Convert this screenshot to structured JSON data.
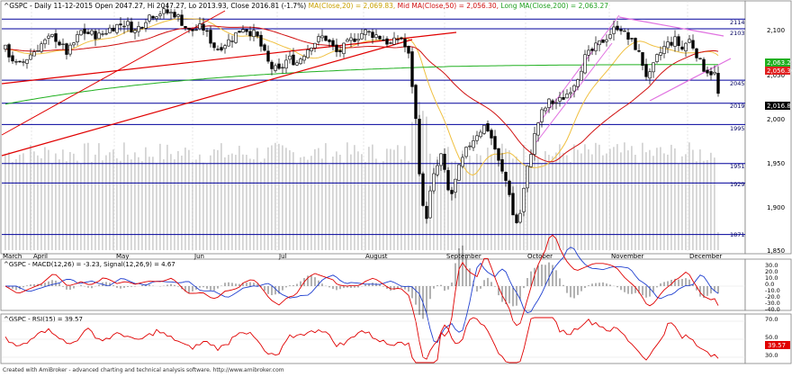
{
  "price_panel": {
    "symbol": "^GSPC",
    "period": "Daily",
    "date": "11-12-2015",
    "open_label": "Open 2047.27,",
    "high_label": "Hi 2047.27,",
    "low_label": "Lo 2013.93,",
    "close_label": "Close 2016.81 (-1.7%)",
    "ma20_label": "MA(Close,20) = 2,069.83,",
    "ma50_label": "Mid MA(Close,50) = 2,056.30,",
    "ma200_label": "Long MA(Close,200) = 2,063.27",
    "y_ticks": [
      "2,100",
      "2,050",
      "2,000",
      "1,950",
      "1,900",
      "1,850"
    ],
    "level_labels": [
      "2114",
      "2103",
      "2045",
      "2019",
      "1995",
      "1951",
      "1929",
      "1871"
    ],
    "last_price_tags": [
      "2,063.27",
      "2,069.83",
      "2,056.30",
      "2,016.81"
    ],
    "months": [
      "March",
      "April",
      "May",
      "Jun",
      "Jul",
      "August",
      "September",
      "October",
      "November",
      "December"
    ]
  },
  "macd_panel": {
    "title": "^GSPC - MACD(12,26) = -3.23, Signal(12,26,9) = 4.67",
    "y_ticks": [
      "30.0",
      "20.0",
      "10.0",
      "0.0",
      "-10.0",
      "-20.0",
      "-30.0",
      "-40.0"
    ]
  },
  "rsi_panel": {
    "title": "^GSPC - RSI(15) = 39.57",
    "y_ticks": [
      "70.0",
      "50.0",
      "30.0"
    ],
    "last_tag": "39.57"
  },
  "footer": "Created with AmiBroker - advanced charting and technical analysis software. http://www.amibroker.com",
  "colors": {
    "up": "#ffffff",
    "down": "#000000",
    "ma20": "#f0c040",
    "ma50": "#d01010",
    "ma200": "#20b020",
    "levels": "#00009c",
    "trend": "#e00000",
    "channel": "#e070e0",
    "macd": "#e00000",
    "signal": "#2040d0",
    "rsi": "#e00000"
  },
  "chart_data": {
    "type": "candlestick",
    "title": "^GSPC - Daily 11-12-2015",
    "ylim": [
      1840,
      2135
    ],
    "yticks": [
      1850,
      1900,
      1950,
      2000,
      2050,
      2100
    ],
    "support_resistance": [
      2114,
      2103,
      2045,
      2019,
      1995,
      1951,
      1929,
      1871
    ],
    "months": [
      "March",
      "April",
      "May",
      "Jun",
      "Jul",
      "August",
      "September",
      "October",
      "November",
      "December"
    ],
    "last": {
      "open": 2047.27,
      "high": 2047.27,
      "low": 2013.93,
      "close": 2016.81,
      "change_pct": -1.7
    },
    "moving_averages": {
      "ma20": 2069.83,
      "ma50": 2056.3,
      "ma200": 2063.27
    },
    "macd": {
      "macd": -3.23,
      "signal": 4.67,
      "ylim": [
        -45,
        35
      ]
    },
    "rsi": {
      "period": 15,
      "value": 39.57,
      "ylim": [
        20,
        80
      ]
    }
  }
}
